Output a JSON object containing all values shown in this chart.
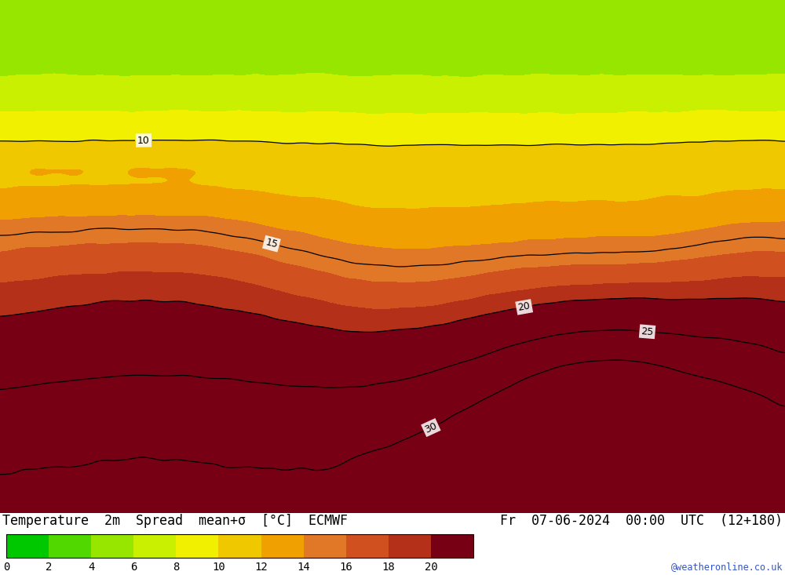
{
  "title_left": "Temperature  2m  Spread  mean+σ  [°C]  ECMWF",
  "title_right": "Fr  07-06-2024  00:00  UTC  (12+180)",
  "watermark": "@weatheronline.co.uk",
  "colorbar_values": [
    0,
    2,
    4,
    6,
    8,
    10,
    12,
    14,
    16,
    18,
    20
  ],
  "colorbar_colors": [
    "#00c800",
    "#50d800",
    "#96e600",
    "#c8f000",
    "#f0f000",
    "#f0c800",
    "#f0a000",
    "#e07828",
    "#d05020",
    "#b43018",
    "#780014"
  ],
  "bg_color": "#50d800",
  "lon_min": -11,
  "lon_max": 43,
  "lat_min": 27,
  "lat_max": 62,
  "bottom_bar_height": 0.108,
  "title_fontsize": 12.0,
  "tick_fontsize": 10,
  "contour_levels": [
    10,
    15,
    20,
    25,
    30
  ],
  "contour_label_levels": [
    10,
    15,
    20,
    25,
    30
  ]
}
